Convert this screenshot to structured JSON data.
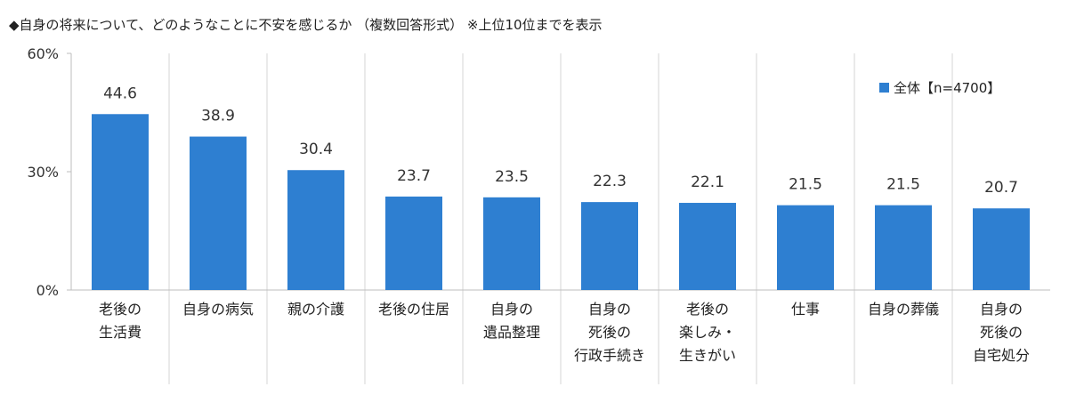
{
  "chart_data": {
    "type": "bar",
    "title": "◆自身の将来について、どのようなことに不安を感じるか （複数回答形式） ※上位10位までを表示",
    "categories": [
      [
        "老後の",
        "生活費"
      ],
      [
        "自身の病気"
      ],
      [
        "親の介護"
      ],
      [
        "老後の住居"
      ],
      [
        "自身の",
        "遺品整理"
      ],
      [
        "自身の",
        "死後の",
        "行政手続き"
      ],
      [
        "老後の",
        "楽しみ・",
        "生きがい"
      ],
      [
        "仕事"
      ],
      [
        "自身の葬儀"
      ],
      [
        "自身の",
        "死後の",
        "自宅処分"
      ]
    ],
    "series": [
      {
        "name": "全体【n=4700】",
        "values": [
          44.6,
          38.9,
          30.4,
          23.7,
          23.5,
          22.3,
          22.1,
          21.5,
          21.5,
          20.7
        ],
        "color": "#2E7FD1"
      }
    ],
    "value_labels": [
      "44.6",
      "38.9",
      "30.4",
      "23.7",
      "23.5",
      "22.3",
      "22.1",
      "21.5",
      "21.5",
      "20.7"
    ],
    "ylim": [
      0,
      60
    ],
    "yticks": [
      0,
      30,
      60
    ],
    "ytick_labels": [
      "0%",
      "30%",
      "60%"
    ],
    "legend_position": "top-right",
    "grid": "vertical category separators",
    "xlabel": "",
    "ylabel": ""
  }
}
